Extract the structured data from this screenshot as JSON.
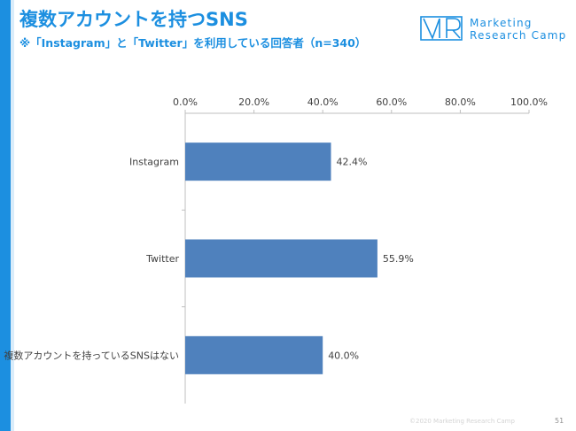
{
  "header": {
    "title": "複数アカウントを持つSNS",
    "subtitle": "※「Instagram」と「Twitter」を利用している回答者（n=340）"
  },
  "logo": {
    "mark": "VR",
    "line1": "Marketing",
    "line2": "Research Camp"
  },
  "colors": {
    "accent": "#1c8fe0",
    "bar": "#4f81bd"
  },
  "chart_data": {
    "type": "bar",
    "orientation": "horizontal",
    "categories": [
      "Instagram",
      "Twitter",
      "複数アカウントを持っているSNSはない"
    ],
    "values": [
      42.4,
      55.9,
      40.0
    ],
    "value_labels": [
      "42.4%",
      "55.9%",
      "40.0%"
    ],
    "xlim": [
      0,
      100
    ],
    "xticks": [
      0,
      20,
      40,
      60,
      80,
      100
    ],
    "xtick_labels": [
      "0.0%",
      "20.0%",
      "40.0%",
      "60.0%",
      "80.0%",
      "100.0%"
    ],
    "axis_position": "top",
    "grid": false,
    "legend": false
  },
  "footer": {
    "copyright": "©2020 Marketing Research Camp",
    "page_number": "51"
  }
}
